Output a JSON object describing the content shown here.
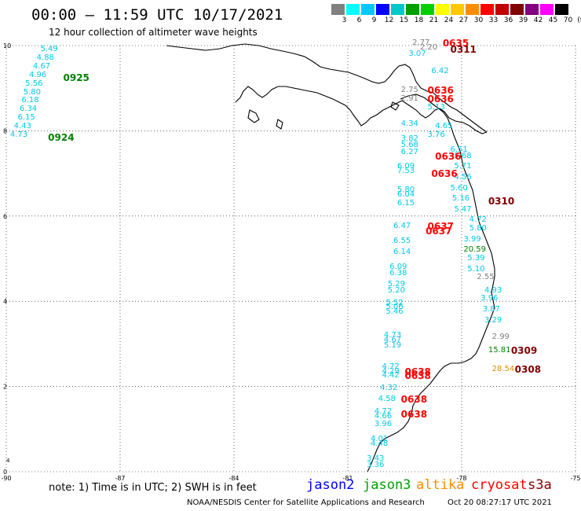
{
  "header": {
    "title": "00:00 – 11:59 UTC 10/17/2021",
    "subtitle": "12 hour collection of altimeter wave heights"
  },
  "colorbar": {
    "unit": "(ft)",
    "bins": [
      {
        "label": "3",
        "color": "#808080"
      },
      {
        "label": "6",
        "color": "#00ffff"
      },
      {
        "label": "9",
        "color": "#00c8ff"
      },
      {
        "label": "12",
        "color": "#0000ff"
      },
      {
        "label": "15",
        "color": "#00c8c8"
      },
      {
        "label": "18",
        "color": "#00a000"
      },
      {
        "label": "21",
        "color": "#00d000"
      },
      {
        "label": "24",
        "color": "#ffff00"
      },
      {
        "label": "27",
        "color": "#ffc800"
      },
      {
        "label": "30",
        "color": "#ff8c00"
      },
      {
        "label": "33",
        "color": "#ff0000"
      },
      {
        "label": "36",
        "color": "#c00000"
      },
      {
        "label": "39",
        "color": "#800000"
      },
      {
        "label": "42",
        "color": "#800080"
      },
      {
        "label": "45",
        "color": "#ff00ff"
      },
      {
        "label": "70",
        "color": "#000000"
      }
    ]
  },
  "map": {
    "x_ticks": [
      "-90",
      "-87",
      "-84",
      "-81",
      "-78",
      "-75"
    ],
    "y_ticks": [
      "0",
      "2",
      "4",
      "6",
      "8",
      "10"
    ],
    "y_tick_extra": "4",
    "lon_range": [
      -90,
      -75
    ],
    "lat_range": [
      0,
      10
    ]
  },
  "observations": [
    {
      "text": "5.49",
      "lon": -89.1,
      "lat": 9.9,
      "color": "#00c8e6"
    },
    {
      "text": "4.88",
      "lon": -89.2,
      "lat": 9.7,
      "color": "#00c8e6"
    },
    {
      "text": "4.67",
      "lon": -89.3,
      "lat": 9.5,
      "color": "#00c8e6"
    },
    {
      "text": "4.96",
      "lon": -89.4,
      "lat": 9.3,
      "color": "#00c8e6"
    },
    {
      "text": "5.56",
      "lon": -89.5,
      "lat": 9.1,
      "color": "#00c8e6"
    },
    {
      "text": "5.80",
      "lon": -89.55,
      "lat": 8.9,
      "color": "#00c8e6"
    },
    {
      "text": "6.18",
      "lon": -89.6,
      "lat": 8.7,
      "color": "#00c8e6"
    },
    {
      "text": "6.34",
      "lon": -89.65,
      "lat": 8.5,
      "color": "#00c8e6"
    },
    {
      "text": "6.15",
      "lon": -89.7,
      "lat": 8.3,
      "color": "#00c8e6"
    },
    {
      "text": "4.43",
      "lon": -89.8,
      "lat": 8.1,
      "color": "#00c8e6"
    },
    {
      "text": "4.73",
      "lon": -89.9,
      "lat": 7.9,
      "color": "#00c8e6"
    },
    {
      "text": "3.07",
      "lon": -79.4,
      "lat": 9.8,
      "color": "#00c8e6"
    },
    {
      "text": "6.42",
      "lon": -78.8,
      "lat": 9.4,
      "color": "#00c8e6"
    },
    {
      "text": "5.13",
      "lon": -78.9,
      "lat": 8.55,
      "color": "#00c8e6"
    },
    {
      "text": "4.34",
      "lon": -79.6,
      "lat": 8.15,
      "color": "#00c8e6"
    },
    {
      "text": "4.65",
      "lon": -78.7,
      "lat": 8.1,
      "color": "#00c8e6"
    },
    {
      "text": "3.76",
      "lon": -78.9,
      "lat": 7.9,
      "color": "#00c8e6"
    },
    {
      "text": "3.82",
      "lon": -79.6,
      "lat": 7.8,
      "color": "#00c8e6"
    },
    {
      "text": "5.68",
      "lon": -79.6,
      "lat": 7.65,
      "color": "#00c8e6"
    },
    {
      "text": "6.27",
      "lon": -79.6,
      "lat": 7.5,
      "color": "#00c8e6"
    },
    {
      "text": "6.51",
      "lon": -78.3,
      "lat": 7.55,
      "color": "#00c8e6"
    },
    {
      "text": "5.68",
      "lon": -78.2,
      "lat": 7.4,
      "color": "#00c8e6"
    },
    {
      "text": "5.71",
      "lon": -78.2,
      "lat": 7.15,
      "color": "#00c8e6"
    },
    {
      "text": "6.09",
      "lon": -79.7,
      "lat": 7.15,
      "color": "#00c8e6"
    },
    {
      "text": "7.53",
      "lon": -79.7,
      "lat": 7.05,
      "color": "#00c8e6"
    },
    {
      "text": "4.56",
      "lon": -78.2,
      "lat": 6.9,
      "color": "#00c8e6"
    },
    {
      "text": "5.60",
      "lon": -78.3,
      "lat": 6.65,
      "color": "#00c8e6"
    },
    {
      "text": "5.80",
      "lon": -79.7,
      "lat": 6.6,
      "color": "#00c8e6"
    },
    {
      "text": "6.04",
      "lon": -79.7,
      "lat": 6.5,
      "color": "#00c8e6"
    },
    {
      "text": "5.16",
      "lon": -78.25,
      "lat": 6.4,
      "color": "#00c8e6"
    },
    {
      "text": "6.15",
      "lon": -79.7,
      "lat": 6.3,
      "color": "#00c8e6"
    },
    {
      "text": "5.47",
      "lon": -78.2,
      "lat": 6.15,
      "color": "#00c8e6"
    },
    {
      "text": "4.72",
      "lon": -77.8,
      "lat": 5.9,
      "color": "#00c8e6"
    },
    {
      "text": "6.47",
      "lon": -79.8,
      "lat": 5.75,
      "color": "#00c8e6"
    },
    {
      "text": "5.80",
      "lon": -77.8,
      "lat": 5.7,
      "color": "#00c8e6"
    },
    {
      "text": "3.99",
      "lon": -77.95,
      "lat": 5.45,
      "color": "#00c8e6"
    },
    {
      "text": "6.55",
      "lon": -79.8,
      "lat": 5.4,
      "color": "#00c8e6"
    },
    {
      "text": "6.14",
      "lon": -79.8,
      "lat": 5.15,
      "color": "#00c8e6"
    },
    {
      "text": "5.39",
      "lon": -77.85,
      "lat": 5.0,
      "color": "#00c8e6"
    },
    {
      "text": "5.10",
      "lon": -77.85,
      "lat": 4.75,
      "color": "#00c8e6"
    },
    {
      "text": "6.09",
      "lon": -79.9,
      "lat": 4.8,
      "color": "#00c8e6"
    },
    {
      "text": "6.38",
      "lon": -79.9,
      "lat": 4.65,
      "color": "#00c8e6"
    },
    {
      "text": "5.29",
      "lon": -79.95,
      "lat": 4.4,
      "color": "#00c8e6"
    },
    {
      "text": "5.20",
      "lon": -79.95,
      "lat": 4.25,
      "color": "#00c8e6"
    },
    {
      "text": "4.93",
      "lon": -77.4,
      "lat": 4.25,
      "color": "#00c8e6"
    },
    {
      "text": "3.96",
      "lon": -77.5,
      "lat": 4.05,
      "color": "#00c8e6"
    },
    {
      "text": "5.52",
      "lon": -80.0,
      "lat": 3.95,
      "color": "#00c8e6"
    },
    {
      "text": "5.06",
      "lon": -80.0,
      "lat": 3.85,
      "color": "#00c8e6"
    },
    {
      "text": "5.46",
      "lon": -80.0,
      "lat": 3.75,
      "color": "#00c8e6"
    },
    {
      "text": "3.87",
      "lon": -77.45,
      "lat": 3.8,
      "color": "#00c8e6"
    },
    {
      "text": "3.29",
      "lon": -77.4,
      "lat": 3.55,
      "color": "#00c8e6"
    },
    {
      "text": "4.73",
      "lon": -80.05,
      "lat": 3.2,
      "color": "#00c8e6"
    },
    {
      "text": "4.67",
      "lon": -80.05,
      "lat": 3.08,
      "color": "#00c8e6"
    },
    {
      "text": "5.19",
      "lon": -80.05,
      "lat": 2.95,
      "color": "#00c8e6"
    },
    {
      "text": "4.72",
      "lon": -80.1,
      "lat": 2.45,
      "color": "#00c8e6"
    },
    {
      "text": "4.29",
      "lon": -80.1,
      "lat": 2.35,
      "color": "#00c8e6"
    },
    {
      "text": "4.42",
      "lon": -80.1,
      "lat": 2.25,
      "color": "#00c8e6"
    },
    {
      "text": "4.32",
      "lon": -80.15,
      "lat": 1.95,
      "color": "#00c8e6"
    },
    {
      "text": "4.58",
      "lon": -80.2,
      "lat": 1.7,
      "color": "#00c8e6"
    },
    {
      "text": "4.72",
      "lon": -80.3,
      "lat": 1.4,
      "color": "#00c8e6"
    },
    {
      "text": "4.66",
      "lon": -80.3,
      "lat": 1.3,
      "color": "#00c8e6"
    },
    {
      "text": "3.96",
      "lon": -80.3,
      "lat": 1.1,
      "color": "#00c8e6"
    },
    {
      "text": "4.01",
      "lon": -80.4,
      "lat": 0.75,
      "color": "#00c8e6"
    },
    {
      "text": "4.48",
      "lon": -80.4,
      "lat": 0.65,
      "color": "#00c8e6"
    },
    {
      "text": "3.43",
      "lon": -80.5,
      "lat": 0.3,
      "color": "#00c8e6"
    },
    {
      "text": "3.36",
      "lon": -80.5,
      "lat": 0.15,
      "color": "#00c8e6"
    },
    {
      "text": "2.77",
      "lon": -79.3,
      "lat": 10.05,
      "color": "#808080"
    },
    {
      "text": "2.20",
      "lon": -79.1,
      "lat": 9.95,
      "color": "#808080"
    },
    {
      "text": "2.75",
      "lon": -79.6,
      "lat": 8.95,
      "color": "#808080"
    },
    {
      "text": "2.91",
      "lon": -79.6,
      "lat": 8.75,
      "color": "#808080"
    },
    {
      "text": "2.55",
      "lon": -77.6,
      "lat": 4.55,
      "color": "#808080"
    },
    {
      "text": "2.99",
      "lon": -77.2,
      "lat": 3.15,
      "color": "#808080"
    },
    {
      "text": "20.59",
      "lon": -77.95,
      "lat": 5.2,
      "color": "#008000"
    },
    {
      "text": "15.81",
      "lon": -77.3,
      "lat": 2.85,
      "color": "#008000"
    },
    {
      "text": "28.54",
      "lon": -77.2,
      "lat": 2.4,
      "color": "#e08c00"
    }
  ],
  "pass_times": [
    {
      "text": "0925",
      "lon": -88.5,
      "lat": 9.25,
      "color": "#008000"
    },
    {
      "text": "0924",
      "lon": -88.9,
      "lat": 7.85,
      "color": "#008000"
    },
    {
      "text": "0635",
      "lon": -78.5,
      "lat": 10.05,
      "color": "#ff0000"
    },
    {
      "text": "0311",
      "lon": -78.3,
      "lat": 9.9,
      "color": "#800000"
    },
    {
      "text": "0636",
      "lon": -78.9,
      "lat": 8.95,
      "color": "#ff0000"
    },
    {
      "text": "0636",
      "lon": -78.9,
      "lat": 8.75,
      "color": "#ff0000"
    },
    {
      "text": "0636",
      "lon": -78.7,
      "lat": 7.4,
      "color": "#ff0000"
    },
    {
      "text": "0636",
      "lon": -78.8,
      "lat": 7.0,
      "color": "#ff0000"
    },
    {
      "text": "0310",
      "lon": -77.3,
      "lat": 6.35,
      "color": "#800000"
    },
    {
      "text": "0637",
      "lon": -78.9,
      "lat": 5.75,
      "color": "#ff0000"
    },
    {
      "text": "0637",
      "lon": -78.95,
      "lat": 5.65,
      "color": "#ff0000"
    },
    {
      "text": "0309",
      "lon": -76.7,
      "lat": 2.85,
      "color": "#800000"
    },
    {
      "text": "0308",
      "lon": -76.6,
      "lat": 2.4,
      "color": "#800000"
    },
    {
      "text": "0638",
      "lon": -79.5,
      "lat": 2.35,
      "color": "#ff0000"
    },
    {
      "text": "0638",
      "lon": -79.5,
      "lat": 2.25,
      "color": "#ff0000"
    },
    {
      "text": "0638",
      "lon": -79.6,
      "lat": 1.7,
      "color": "#ff0000"
    },
    {
      "text": "0638",
      "lon": -79.6,
      "lat": 1.35,
      "color": "#ff0000"
    }
  ],
  "footer": {
    "note": "note: 1) Time is in UTC; 2) SWH is in feet",
    "satellites": [
      {
        "name": "jason2",
        "color": "#0000ff"
      },
      {
        "name": "jason3",
        "color": "#00a000"
      },
      {
        "name": "altika",
        "color": "#ff8c00"
      },
      {
        "name": "cryosat",
        "color": "#ff0000"
      },
      {
        "name": "s3a",
        "color": "#800000"
      }
    ],
    "credit": "NOAA/NESDIS Center for Satellite Applications and Research",
    "timestamp": "Oct 20 08:27:17 UTC 2021"
  }
}
